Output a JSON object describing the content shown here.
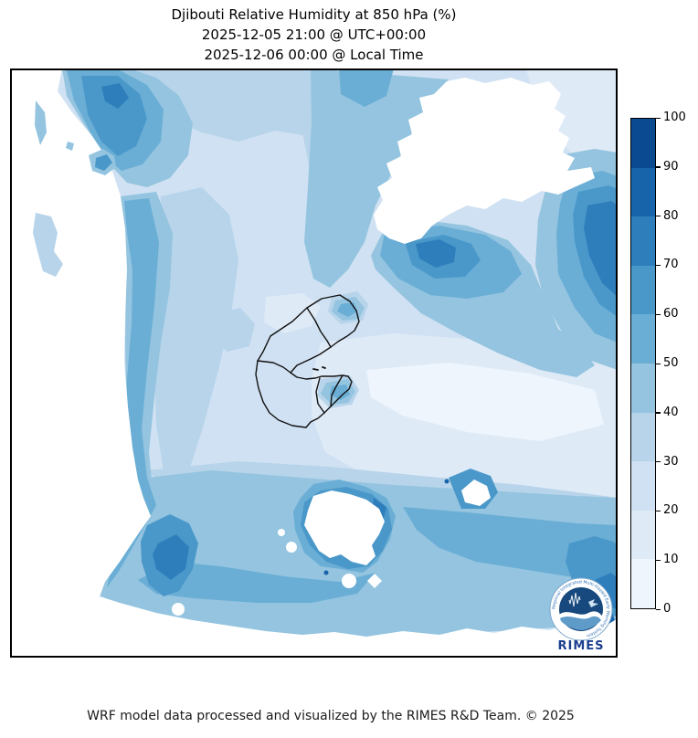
{
  "title": {
    "line1": "Djibouti Relative Humidity at 850 hPa (%)",
    "line2": "2025-12-05 21:00 @ UTC+00:00",
    "line3": "2025-12-06 00:00 @ Local Time"
  },
  "footer": {
    "credit": "WRF model data processed and visualized by the RIMES R&D Team. © 2025"
  },
  "logo": {
    "label": "RIMES",
    "ring_text": "Regional Integrated Multi-Hazard Early Warning System",
    "emblem_color": "#17497e",
    "label_color": "#1b3f8f"
  },
  "colorbar": {
    "min": 0,
    "max": 100,
    "tick_step": 10,
    "ticks": [
      0,
      10,
      20,
      30,
      40,
      50,
      60,
      70,
      80,
      90,
      100
    ],
    "band_colors": [
      "#eef5fc",
      "#dfeaf7",
      "#cfe1f2",
      "#b7d4ea",
      "#94c4df",
      "#6aaed6",
      "#4a98c9",
      "#2e7ebc",
      "#1864aa",
      "#0a4a90"
    ],
    "outline_color": "#000000"
  },
  "map": {
    "border_color": "#000000",
    "country_outline": "Djibouti with regional administrative boundaries",
    "outline_color": "#111111",
    "mask_color": "#ffffff"
  },
  "chart_data": {
    "type": "heatmap",
    "title": "Djibouti Relative Humidity at 850 hPa (%)",
    "subtitle_utc": "2025-12-05 21:00 @ UTC+00:00",
    "subtitle_local": "2025-12-06 00:00 @ Local Time",
    "variable": "Relative Humidity",
    "level": "850 hPa",
    "units": "%",
    "model": "WRF",
    "region": "Djibouti and surrounding area",
    "legend_position": "right",
    "colorbar_levels": [
      0,
      10,
      20,
      30,
      40,
      50,
      60,
      70,
      80,
      90,
      100
    ],
    "palette": [
      "#eef5fc",
      "#dfeaf7",
      "#cfe1f2",
      "#b7d4ea",
      "#94c4df",
      "#6aaed6",
      "#4a98c9",
      "#2e7ebc",
      "#1864aa",
      "#0a4a90"
    ],
    "features": [
      {
        "zone": "west and northwest margin",
        "rh_percent": "below 10 (rendered white)"
      },
      {
        "zone": "diagonal band along the western dry edge",
        "rh_percent": "40-60 with 60-70 cores"
      },
      {
        "zone": "top-left wedge at north edge",
        "rh_percent": "50-70"
      },
      {
        "zone": "upper-middle band",
        "rh_percent": "40-50"
      },
      {
        "zone": "northeast pocket",
        "rh_percent": "below 10 (rendered white)"
      },
      {
        "zone": "east edge, upper middle",
        "rh_percent": "60-80"
      },
      {
        "zone": "south of northeast pocket",
        "rh_percent": "50-80"
      },
      {
        "zone": "center around Djibouti borders",
        "rh_percent": "20-40"
      },
      {
        "zone": "pale band across middle-east side",
        "rh_percent": "0-20"
      },
      {
        "zone": "southern third broad band",
        "rh_percent": "40-60 with 60-80 cores"
      },
      {
        "zone": "south-central pockets",
        "rh_percent": "below 10 (rendered white)"
      },
      {
        "zone": "southeast corner spots",
        "rh_percent": "70-90"
      },
      {
        "zone": "bottom strip",
        "rh_percent": "below 10 (rendered white)"
      }
    ]
  }
}
